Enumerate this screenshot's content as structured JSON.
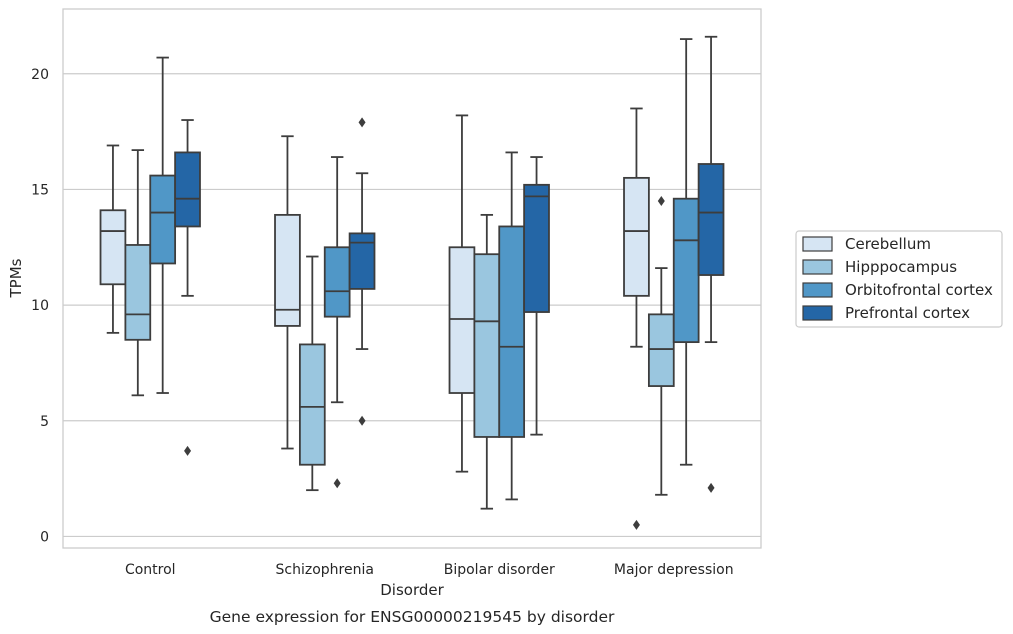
{
  "chart_data": {
    "type": "box",
    "title": "",
    "caption": "Gene expression for ENSG00000219545 by disorder",
    "xlabel": "Disorder",
    "ylabel": "TPMs",
    "ylim": [
      -0.5,
      22.8
    ],
    "yticks": [
      0,
      5,
      10,
      15,
      20
    ],
    "grid": "horizontal",
    "legend_position": "right-center",
    "categories": [
      "Control",
      "Schizophrenia",
      "Bipolar disorder",
      "Major depression"
    ],
    "series": [
      {
        "name": "Cerebellum",
        "color": "#d6e5f3",
        "boxes": [
          {
            "min": 8.8,
            "q1": 10.9,
            "median": 13.2,
            "q3": 14.1,
            "max": 16.9,
            "outliers": []
          },
          {
            "min": 3.8,
            "q1": 9.1,
            "median": 9.8,
            "q3": 13.9,
            "max": 17.3,
            "outliers": []
          },
          {
            "min": 2.8,
            "q1": 6.2,
            "median": 9.4,
            "q3": 12.5,
            "max": 18.2,
            "outliers": []
          },
          {
            "min": 8.2,
            "q1": 10.4,
            "median": 13.2,
            "q3": 15.5,
            "max": 18.5,
            "outliers": [
              0.5
            ]
          }
        ]
      },
      {
        "name": "Hipppocampus",
        "color": "#9ac6df",
        "boxes": [
          {
            "min": 6.1,
            "q1": 8.5,
            "median": 9.6,
            "q3": 12.6,
            "max": 16.7,
            "outliers": []
          },
          {
            "min": 2.0,
            "q1": 3.1,
            "median": 5.6,
            "q3": 8.3,
            "max": 12.1,
            "outliers": []
          },
          {
            "min": 1.2,
            "q1": 4.3,
            "median": 9.3,
            "q3": 12.2,
            "max": 13.9,
            "outliers": []
          },
          {
            "min": 1.8,
            "q1": 6.5,
            "median": 8.1,
            "q3": 9.6,
            "max": 11.6,
            "outliers": [
              14.5
            ]
          }
        ]
      },
      {
        "name": "Orbitofrontal cortex",
        "color": "#5097c7",
        "boxes": [
          {
            "min": 6.2,
            "q1": 11.8,
            "median": 14.0,
            "q3": 15.6,
            "max": 20.7,
            "outliers": []
          },
          {
            "min": 5.8,
            "q1": 9.5,
            "median": 10.6,
            "q3": 12.5,
            "max": 16.4,
            "outliers": [
              2.3
            ]
          },
          {
            "min": 1.6,
            "q1": 4.3,
            "median": 8.2,
            "q3": 13.4,
            "max": 16.6,
            "outliers": []
          },
          {
            "min": 3.1,
            "q1": 8.4,
            "median": 12.8,
            "q3": 14.6,
            "max": 21.5,
            "outliers": []
          }
        ]
      },
      {
        "name": "Prefrontal cortex",
        "color": "#2466a6",
        "boxes": [
          {
            "min": 10.4,
            "q1": 13.4,
            "median": 14.6,
            "q3": 16.6,
            "max": 18.0,
            "outliers": [
              3.7
            ]
          },
          {
            "min": 8.1,
            "q1": 10.7,
            "median": 12.7,
            "q3": 13.1,
            "max": 15.7,
            "outliers": [
              17.9,
              5.0
            ]
          },
          {
            "min": 4.4,
            "q1": 9.7,
            "median": 14.7,
            "q3": 15.2,
            "max": 16.4,
            "outliers": []
          },
          {
            "min": 8.4,
            "q1": 11.3,
            "median": 14.0,
            "q3": 16.1,
            "max": 21.6,
            "outliers": [
              2.1
            ]
          }
        ]
      }
    ]
  }
}
